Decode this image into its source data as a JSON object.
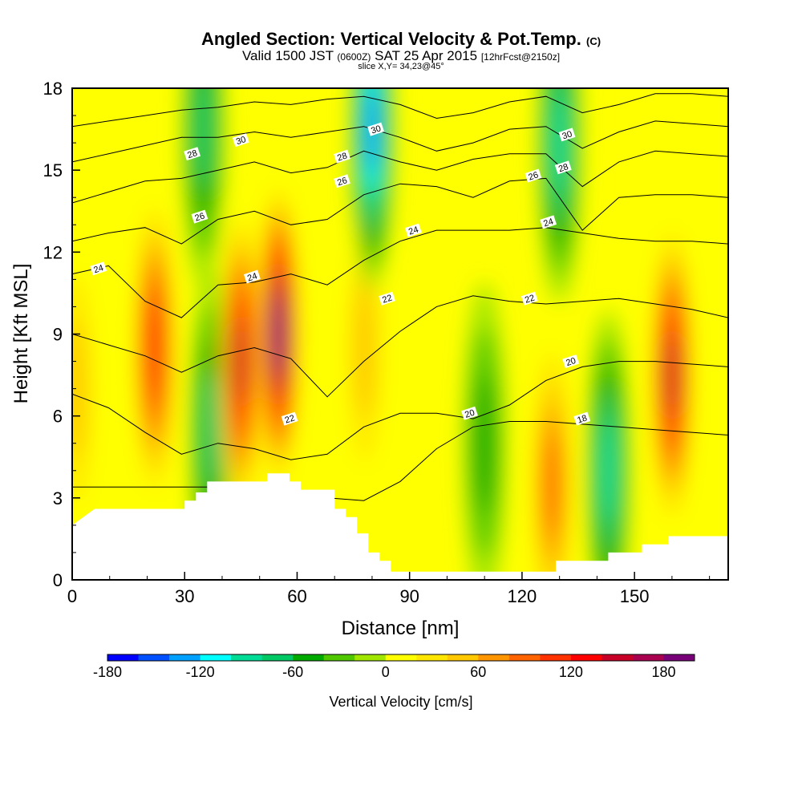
{
  "title": {
    "main": "Angled Section: Vertical Velocity & Pot.Temp.",
    "units_tag": "(C)",
    "valid_prefix": "Valid 1500 JST",
    "zulu": "(0600Z)",
    "valid_date": "SAT 25 Apr 2015",
    "forecast": "[12hrFcst@2150z]",
    "slice": "slice X,Y= 34,23@45°"
  },
  "chart_data": {
    "type": "heatmap",
    "title": "Angled Section: Vertical Velocity & Pot.Temp.",
    "xlabel": "Distance [nm]",
    "ylabel": "Height [Kft MSL]",
    "xlim": [
      0,
      175
    ],
    "ylim": [
      0,
      18
    ],
    "xticks": [
      0,
      30,
      60,
      90,
      120,
      150
    ],
    "yticks": [
      0,
      3,
      6,
      9,
      12,
      15,
      18
    ],
    "colorbar": {
      "label": "Vertical Velocity [cm/s]",
      "min": -180,
      "max": 200,
      "step": 20,
      "tick_labels": [
        -180,
        -120,
        -60,
        0,
        60,
        120,
        180
      ],
      "colors": [
        "#0000ff",
        "#0050ff",
        "#00a0ff",
        "#00ffff",
        "#00dc96",
        "#00c864",
        "#00aa00",
        "#50c800",
        "#a0e600",
        "#ffff00",
        "#ffe600",
        "#ffc800",
        "#ff9600",
        "#ff6400",
        "#ff3200",
        "#ff0000",
        "#c80028",
        "#aa0050",
        "#780078"
      ]
    },
    "velocity_features": [
      {
        "x": 1,
        "z": 7.0,
        "value": 60
      },
      {
        "x": 22,
        "z": 8.5,
        "value": 140
      },
      {
        "x": 37,
        "z": 5.5,
        "value": -70
      },
      {
        "x": 45,
        "z": 8.0,
        "value": 160
      },
      {
        "x": 55,
        "z": 9.0,
        "value": 200
      },
      {
        "x": 35,
        "z": 16.5,
        "value": -80
      },
      {
        "x": 80,
        "z": 16.5,
        "value": -140
      },
      {
        "x": 78,
        "z": 8.5,
        "value": 50
      },
      {
        "x": 110,
        "z": 5.0,
        "value": -60
      },
      {
        "x": 128,
        "z": 3.5,
        "value": 100
      },
      {
        "x": 130,
        "z": 16.0,
        "value": -90
      },
      {
        "x": 143,
        "z": 4.0,
        "value": -90
      },
      {
        "x": 160,
        "z": 7.5,
        "value": 160
      }
    ],
    "potential_temperature_labels": [
      {
        "text": "30",
        "x": 45,
        "z": 16.1
      },
      {
        "text": "28",
        "x": 32,
        "z": 15.6
      },
      {
        "text": "26",
        "x": 34,
        "z": 13.3
      },
      {
        "text": "24",
        "x": 7,
        "z": 11.4
      },
      {
        "text": "24",
        "x": 48,
        "z": 11.1
      },
      {
        "text": "28",
        "x": 72,
        "z": 15.5
      },
      {
        "text": "26",
        "x": 72,
        "z": 14.6
      },
      {
        "text": "30",
        "x": 81,
        "z": 16.5
      },
      {
        "text": "24",
        "x": 91,
        "z": 12.8
      },
      {
        "text": "22",
        "x": 84,
        "z": 10.3
      },
      {
        "text": "22",
        "x": 58,
        "z": 5.9
      },
      {
        "text": "20",
        "x": 106,
        "z": 6.1
      },
      {
        "text": "22",
        "x": 122,
        "z": 10.3
      },
      {
        "text": "20",
        "x": 133,
        "z": 8.0
      },
      {
        "text": "18",
        "x": 136,
        "z": 5.9
      },
      {
        "text": "26",
        "x": 123,
        "z": 14.8
      },
      {
        "text": "24",
        "x": 127,
        "z": 13.1
      },
      {
        "text": "28",
        "x": 131,
        "z": 15.1
      },
      {
        "text": "30",
        "x": 132,
        "z": 16.3
      }
    ],
    "isentrope_levels": [
      {
        "label": "18",
        "z": [
          3.4,
          3.4,
          3.4,
          3.4,
          3.4,
          3.3,
          3.2,
          3.0,
          2.9,
          3.6,
          4.8,
          5.6,
          5.8,
          5.8,
          5.7,
          5.6,
          5.5,
          5.4,
          5.3
        ]
      },
      {
        "label": "20",
        "z": [
          6.8,
          6.3,
          5.4,
          4.6,
          5.0,
          4.8,
          4.4,
          4.6,
          5.6,
          6.1,
          6.1,
          5.9,
          6.4,
          7.3,
          7.8,
          8.0,
          8.0,
          7.9,
          7.8
        ]
      },
      {
        "label": "22",
        "z": [
          9.0,
          8.6,
          8.2,
          7.6,
          8.2,
          8.5,
          8.1,
          6.7,
          8.0,
          9.1,
          10.0,
          10.4,
          10.2,
          10.1,
          10.2,
          10.3,
          10.1,
          9.9,
          9.6
        ]
      },
      {
        "label": "24",
        "z": [
          11.2,
          11.5,
          10.2,
          9.6,
          10.8,
          10.9,
          11.2,
          10.8,
          11.7,
          12.4,
          12.8,
          12.8,
          12.8,
          12.9,
          12.7,
          12.5,
          12.4,
          12.4,
          12.3
        ]
      },
      {
        "label": "26",
        "z": [
          12.4,
          12.7,
          12.9,
          12.3,
          13.2,
          13.5,
          13.0,
          13.2,
          14.1,
          14.5,
          14.4,
          14.0,
          14.6,
          14.7,
          12.8,
          14.0,
          14.1,
          14.1,
          14.0
        ]
      },
      {
        "label": "28",
        "z": [
          13.8,
          14.2,
          14.6,
          14.7,
          15.0,
          15.3,
          14.9,
          15.1,
          15.7,
          15.3,
          15.0,
          15.4,
          15.6,
          15.6,
          14.4,
          15.3,
          15.7,
          15.6,
          15.5
        ]
      },
      {
        "label": "30",
        "z": [
          15.3,
          15.6,
          15.9,
          16.2,
          16.2,
          16.4,
          16.2,
          16.4,
          16.6,
          16.2,
          15.7,
          16.0,
          16.5,
          16.6,
          15.8,
          16.4,
          16.8,
          16.7,
          16.6
        ]
      },
      {
        "label": "",
        "z": [
          16.6,
          16.8,
          17.0,
          17.2,
          17.3,
          17.5,
          17.4,
          17.6,
          17.7,
          17.4,
          16.9,
          17.1,
          17.5,
          17.7,
          17.1,
          17.4,
          17.8,
          17.8,
          17.7
        ]
      }
    ],
    "terrain": [
      {
        "x": 0,
        "z": 2.0
      },
      {
        "x": 3,
        "z": 2.3
      },
      {
        "x": 6,
        "z": 2.6
      },
      {
        "x": 30,
        "z": 2.6
      },
      {
        "x": 30,
        "z": 2.9
      },
      {
        "x": 33,
        "z": 2.9
      },
      {
        "x": 33,
        "z": 3.2
      },
      {
        "x": 36,
        "z": 3.2
      },
      {
        "x": 36,
        "z": 3.6
      },
      {
        "x": 52,
        "z": 3.6
      },
      {
        "x": 52,
        "z": 3.9
      },
      {
        "x": 58,
        "z": 3.9
      },
      {
        "x": 58,
        "z": 3.6
      },
      {
        "x": 61,
        "z": 3.6
      },
      {
        "x": 61,
        "z": 3.3
      },
      {
        "x": 70,
        "z": 3.3
      },
      {
        "x": 70,
        "z": 2.6
      },
      {
        "x": 73,
        "z": 2.6
      },
      {
        "x": 73,
        "z": 2.3
      },
      {
        "x": 76,
        "z": 2.3
      },
      {
        "x": 76,
        "z": 1.7
      },
      {
        "x": 79,
        "z": 1.7
      },
      {
        "x": 79,
        "z": 1.0
      },
      {
        "x": 82,
        "z": 1.0
      },
      {
        "x": 82,
        "z": 0.7
      },
      {
        "x": 85,
        "z": 0.7
      },
      {
        "x": 85,
        "z": 0.3
      },
      {
        "x": 129,
        "z": 0.3
      },
      {
        "x": 129,
        "z": 0.7
      },
      {
        "x": 143,
        "z": 0.7
      },
      {
        "x": 143,
        "z": 1.0
      },
      {
        "x": 152,
        "z": 1.0
      },
      {
        "x": 152,
        "z": 1.3
      },
      {
        "x": 159,
        "z": 1.3
      },
      {
        "x": 159,
        "z": 1.6
      },
      {
        "x": 175,
        "z": 1.6
      }
    ]
  }
}
